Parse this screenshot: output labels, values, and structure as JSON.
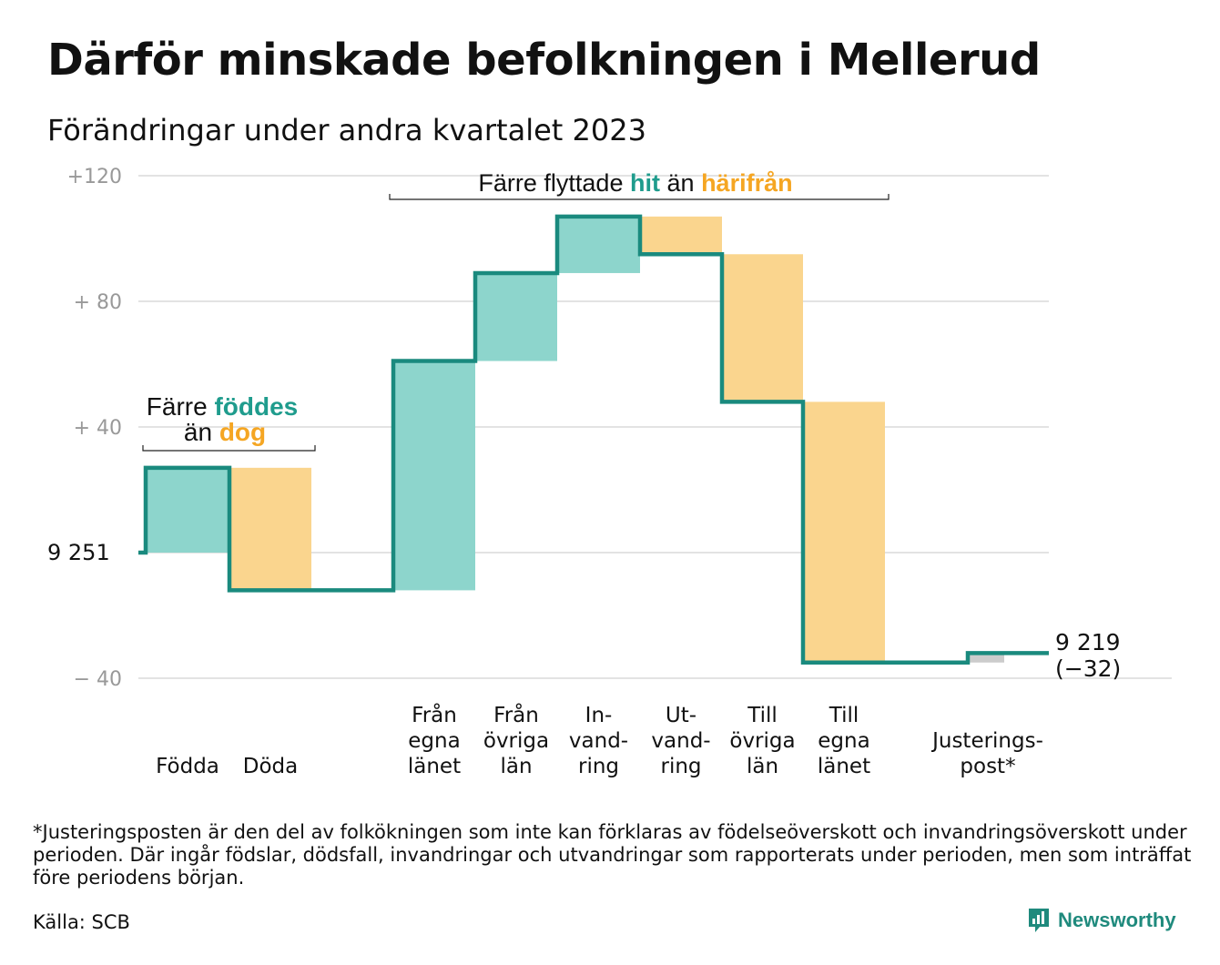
{
  "title": "Därför minskade befolkningen i Mellerud",
  "subtitle": "Förändringar under andra kvartalet 2023",
  "chart_data": {
    "type": "waterfall",
    "start_label": "9  251",
    "end_label_line1": "9 219",
    "end_label_line2": "(−32)",
    "ylim": [
      -40,
      120
    ],
    "yticks": [
      {
        "value": 120,
        "label": "+120"
      },
      {
        "value": 80,
        "label": "+  80"
      },
      {
        "value": 40,
        "label": "+  40"
      },
      {
        "value": 0,
        "label": ""
      },
      {
        "value": -40,
        "label": "−  40"
      }
    ],
    "steps": [
      {
        "label_lines": [
          "Födda"
        ],
        "value": 27,
        "color": "#8dd5cc"
      },
      {
        "label_lines": [
          "Döda"
        ],
        "value": -39,
        "color": "#fad58e"
      },
      {
        "label_lines": [
          "Från",
          "egna",
          "länet"
        ],
        "value": 73,
        "color": "#8dd5cc"
      },
      {
        "label_lines": [
          "Från",
          "övriga",
          "län"
        ],
        "value": 28,
        "color": "#8dd5cc"
      },
      {
        "label_lines": [
          "In-",
          "vand-",
          "ring"
        ],
        "value": 18,
        "color": "#8dd5cc"
      },
      {
        "label_lines": [
          "Ut-",
          "vand-",
          "ring"
        ],
        "value": -12,
        "color": "#fad58e"
      },
      {
        "label_lines": [
          "Till",
          "övriga",
          "län"
        ],
        "value": -47,
        "color": "#fad58e"
      },
      {
        "label_lines": [
          "Till",
          "egna",
          "länet"
        ],
        "value": -83,
        "color": "#fad58e"
      },
      {
        "label_lines": [
          "Justerings-",
          "post*"
        ],
        "value": 3,
        "color": "#cccccc"
      }
    ],
    "annotations": {
      "births": {
        "line1": "Färre",
        "highlight1": "föddes",
        "line2": "än",
        "highlight2": "dog"
      },
      "moves": {
        "prefix": "Färre flyttade",
        "highlight1": "hit",
        "middle": "än",
        "highlight2": "härifrån"
      }
    },
    "colors": {
      "step_line": "#1a8a7e",
      "positive": "#8dd5cc",
      "negative": "#fad58e",
      "teal_text": "#1f9c8d",
      "orange_text": "#f5a623",
      "grid": "#e3e3e3",
      "tick": "#999999"
    }
  },
  "footnote": "*Justeringsposten är den del av folkökningen som inte kan förklaras av födelseöverskott och invandringsöverskott under perioden. Där ingår födslar, dödsfall, invandringar och utvandringar som rapporterats under perioden, men som inträffat före periodens början.",
  "source": "Källa: SCB",
  "brand": "Newsworthy"
}
